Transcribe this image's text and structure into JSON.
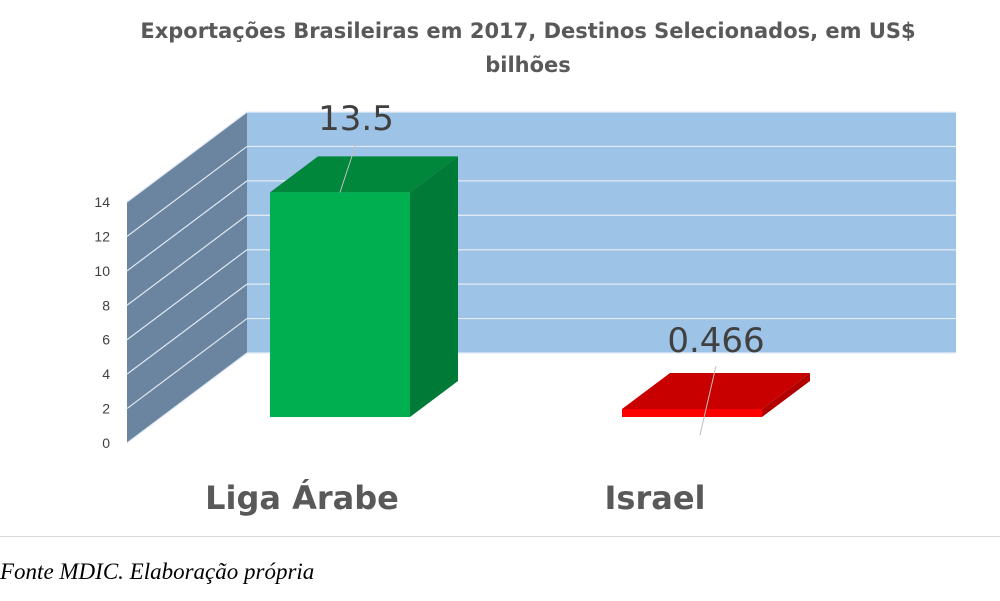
{
  "chart_data": {
    "type": "bar",
    "title_line1": "Exportações Brasileiras em 2017, Destinos Selecionados, em US$",
    "title_line2": "bilhões",
    "categories": [
      "Liga Árabe",
      "Israel"
    ],
    "values": [
      13.5,
      0.466
    ],
    "data_labels": [
      "13.5",
      "0.466"
    ],
    "ylim": [
      0,
      14
    ],
    "yticks": [
      "0",
      "2",
      "4",
      "6",
      "8",
      "10",
      "12",
      "14"
    ],
    "grid": true,
    "legend": "none",
    "style": "3d-column",
    "colors": {
      "bar_front": [
        "#00b050",
        "#ff0000"
      ],
      "bar_side": [
        "#007a37",
        "#b20000"
      ],
      "bar_top": [
        "#00873c",
        "#c80000"
      ],
      "back_wall": "#9dc3e6",
      "side_wall": "#6b85a1"
    }
  },
  "source": "Fonte MDIC. Elaboração própria"
}
